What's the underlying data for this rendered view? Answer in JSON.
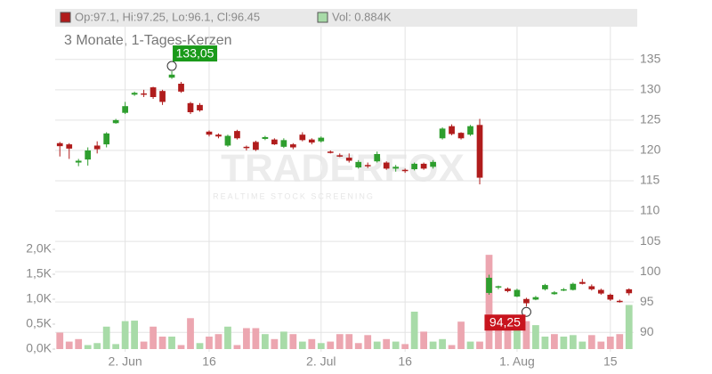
{
  "chart_data": {
    "type": "candlestick",
    "header": {
      "ohlc": "Op:97.1, Hi:97.25, Lo:96.1, Cl:96.45",
      "volume": "Vol: 0.884K"
    },
    "subtitle": "3 Monate, 1-Tages-Kerzen",
    "watermark": {
      "title": "TRADERFOX",
      "subtitle": "REALTIME STOCK SCREENING"
    },
    "categories": [
      null,
      null,
      null,
      null,
      null,
      null,
      null,
      "2. Jun",
      null,
      null,
      null,
      null,
      null,
      null,
      null,
      null,
      "16",
      null,
      null,
      null,
      null,
      null,
      null,
      null,
      null,
      null,
      null,
      null,
      "2. Jul",
      null,
      null,
      null,
      null,
      null,
      null,
      null,
      null,
      "16",
      null,
      null,
      null,
      null,
      null,
      null,
      null,
      null,
      null,
      null,
      null,
      "1. Aug",
      null,
      null,
      null,
      null,
      null,
      null,
      null,
      null,
      null,
      "15",
      null,
      null
    ],
    "open": [
      121.2,
      121.0,
      118.0,
      118.5,
      120.8,
      121.0,
      124.5,
      126.2,
      129.2,
      129.4,
      130.4,
      129.8,
      132.0,
      131.0,
      127.8,
      127.5,
      123.1,
      122.6,
      120.8,
      123.2,
      120.6,
      121.4,
      121.9,
      121.8,
      120.6,
      121.0,
      122.6,
      121.8,
      121.5,
      119.8,
      119.2,
      118.8,
      117.2,
      117.6,
      118.2,
      118.0,
      117.0,
      116.8,
      116.9,
      117.8,
      117.3,
      122.0,
      124.0,
      122.9,
      122.6,
      124.2,
      96.5,
      97.4,
      97.2,
      95.9,
      95.5,
      95.4,
      97.1,
      96.3,
      97.0,
      97.0,
      98.3,
      97.6,
      97.0,
      96.2,
      95.2,
      97.1
    ],
    "high": [
      121.4,
      121.2,
      118.6,
      120.5,
      121.5,
      123.0,
      125.2,
      128.0,
      129.7,
      130.0,
      130.5,
      130.0,
      133.05,
      131.3,
      128.0,
      127.8,
      123.3,
      122.8,
      122.6,
      123.4,
      120.8,
      121.6,
      122.4,
      122.0,
      122.0,
      121.2,
      123.0,
      122.0,
      122.3,
      120.0,
      119.5,
      119.5,
      118.4,
      118.0,
      119.8,
      118.2,
      117.6,
      117.0,
      118.0,
      118.0,
      118.4,
      123.8,
      124.3,
      123.0,
      124.2,
      125.2,
      99.5,
      97.7,
      97.4,
      97.2,
      95.7,
      96.0,
      98.0,
      96.8,
      97.3,
      98.2,
      98.8,
      97.9,
      97.2,
      96.4,
      95.4,
      97.25
    ],
    "low": [
      119.0,
      118.6,
      117.4,
      117.5,
      119.5,
      120.5,
      124.4,
      126.0,
      129.0,
      128.8,
      128.5,
      127.5,
      131.8,
      129.5,
      126.0,
      126.4,
      122.3,
      122.0,
      120.6,
      121.8,
      120.0,
      119.9,
      121.7,
      120.9,
      120.4,
      120.2,
      121.5,
      121.0,
      121.3,
      119.5,
      118.9,
      118.0,
      117.0,
      117.1,
      118.0,
      116.8,
      116.5,
      116.3,
      116.7,
      116.8,
      117.0,
      121.8,
      122.5,
      121.8,
      122.4,
      114.4,
      96.2,
      97.1,
      96.6,
      95.8,
      94.25,
      95.3,
      96.9,
      96.2,
      96.8,
      96.9,
      97.9,
      96.9,
      96.2,
      95.2,
      94.9,
      96.1
    ],
    "close": [
      120.7,
      120.3,
      118.3,
      120.0,
      120.2,
      122.8,
      125.0,
      127.3,
      129.5,
      129.2,
      128.8,
      128.0,
      132.5,
      129.7,
      126.3,
      126.6,
      122.6,
      122.3,
      122.4,
      122.0,
      120.4,
      120.1,
      122.2,
      121.0,
      121.7,
      120.5,
      121.7,
      121.3,
      122.1,
      119.6,
      119.0,
      118.3,
      118.1,
      117.4,
      119.4,
      117.0,
      117.3,
      116.6,
      117.8,
      117.0,
      118.1,
      123.6,
      122.7,
      122.0,
      124.0,
      115.5,
      99.0,
      97.6,
      96.8,
      97.0,
      94.8,
      95.8,
      97.8,
      96.6,
      97.1,
      98.0,
      98.0,
      97.1,
      96.4,
      95.4,
      95.0,
      96.45
    ],
    "volume": [
      330,
      150,
      200,
      80,
      120,
      450,
      100,
      560,
      570,
      150,
      450,
      250,
      250,
      80,
      620,
      120,
      250,
      300,
      450,
      80,
      420,
      420,
      300,
      200,
      350,
      300,
      150,
      200,
      120,
      150,
      300,
      300,
      120,
      280,
      150,
      200,
      150,
      100,
      750,
      350,
      150,
      200,
      80,
      550,
      150,
      150,
      1890,
      600,
      560,
      450,
      560,
      480,
      250,
      300,
      250,
      280,
      150,
      280,
      150,
      250,
      300,
      884
    ],
    "max_label": "133,05",
    "min_label": "94,25",
    "colors": {
      "up": "#2e9e2e",
      "down": "#b01c1c",
      "volume_up": "#a8dba8",
      "volume_down": "#eca6b0"
    },
    "ylim": [
      86.8,
      140.4
    ],
    "yticks": [
      90,
      95,
      100,
      105,
      110,
      115,
      120,
      125,
      130,
      135
    ],
    "y2lim": [
      0,
      6500
    ],
    "y2ticks": [
      {
        "value": 0,
        "label": "0,0K"
      },
      {
        "value": 500,
        "label": "0,5K"
      },
      {
        "value": 1000,
        "label": "1,0K"
      },
      {
        "value": 1500,
        "label": "1,5K"
      },
      {
        "value": 2000,
        "label": "2,0K"
      }
    ],
    "grid": true
  }
}
